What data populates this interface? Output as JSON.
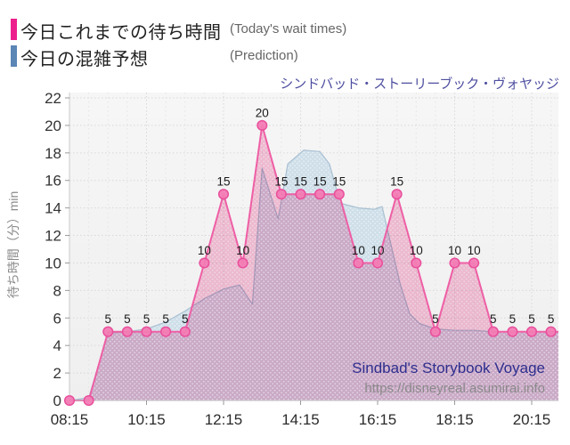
{
  "legend": {
    "items": [
      {
        "label_jp": "今日これまでの待ち時間",
        "label_en": "(Today's wait times)",
        "swatch_color": "#ec1f8d"
      },
      {
        "label_jp": "今日の混雑予想",
        "label_en": "(Prediction)",
        "swatch_color": "#5b86b5"
      }
    ]
  },
  "watermark": {
    "line1": "Sindbad's Storybook Voyage",
    "line2": "https://disneyreal.asumirai.info",
    "line1_color": "#2e2e8e",
    "line2_color": "#8a8a8a"
  },
  "chart_data": {
    "type": "area",
    "title": "シンドバッド・ストーリーブック・ヴォヤッジ",
    "title_color": "#4f4fa1",
    "ylabel": "待ち時間（分）min",
    "ylim": [
      0,
      22
    ],
    "y_tick_step": 2,
    "x_tick_labels": [
      "08:15",
      "10:15",
      "12:15",
      "14:15",
      "16:15",
      "18:15",
      "20:15"
    ],
    "x_minor_interval_minutes": 30,
    "grid": true,
    "series": [
      {
        "name": "今日これまでの待ち時間 (Today's wait times)",
        "kind": "actual",
        "line_color": "#ee5fa5",
        "fill_color": "#f9c3da",
        "marker_fill": "#f27cb4",
        "marker_stroke": "#e94f9c",
        "times": [
          "08:15",
          "08:45",
          "09:15",
          "09:45",
          "10:15",
          "10:45",
          "11:15",
          "11:45",
          "12:15",
          "12:45",
          "13:15",
          "13:45",
          "14:15",
          "14:45",
          "15:15",
          "15:45",
          "16:15",
          "16:45",
          "17:15",
          "17:45",
          "18:15",
          "18:45",
          "19:15",
          "19:45",
          "20:15",
          "20:45"
        ],
        "values": [
          0,
          0,
          5,
          5,
          5,
          5,
          5,
          10,
          15,
          10,
          20,
          15,
          15,
          15,
          15,
          10,
          10,
          15,
          10,
          5,
          10,
          10,
          5,
          5,
          5,
          5
        ],
        "point_labels": [
          "",
          "",
          "5",
          "5",
          "5",
          "5",
          "5",
          "10",
          "15",
          "10",
          "20",
          "15",
          "15",
          "15",
          "15",
          "10",
          "10",
          "15",
          "10",
          "5",
          "10",
          "10",
          "5",
          "5",
          "5",
          "5"
        ]
      },
      {
        "name": "今日の混雑予想 (Prediction)",
        "kind": "prediction",
        "line_color": "#a8bfd2",
        "fill_color": "#cfdfe9",
        "times": [
          "08:15",
          "08:45",
          "09:15",
          "09:45",
          "10:15",
          "10:45",
          "11:15",
          "11:45",
          "12:15",
          "12:40",
          "13:00",
          "13:15",
          "13:40",
          "13:55",
          "14:20",
          "14:45",
          "15:00",
          "15:10",
          "15:20",
          "15:45",
          "16:10",
          "16:22",
          "16:35",
          "16:50",
          "17:05",
          "17:20",
          "17:45",
          "18:15",
          "18:45",
          "19:15",
          "19:45",
          "20:15",
          "20:45",
          "21:00"
        ],
        "values": [
          0,
          0.2,
          4.9,
          5,
          5.2,
          5.7,
          6.5,
          7.4,
          8.1,
          8.4,
          7.0,
          16.9,
          13.2,
          17.2,
          18.2,
          18.1,
          17.2,
          15.5,
          14.3,
          14.0,
          13.9,
          14.1,
          11.5,
          8.5,
          6.3,
          5.6,
          5.2,
          5.1,
          5.1,
          5,
          5,
          5,
          5,
          5
        ]
      }
    ]
  }
}
